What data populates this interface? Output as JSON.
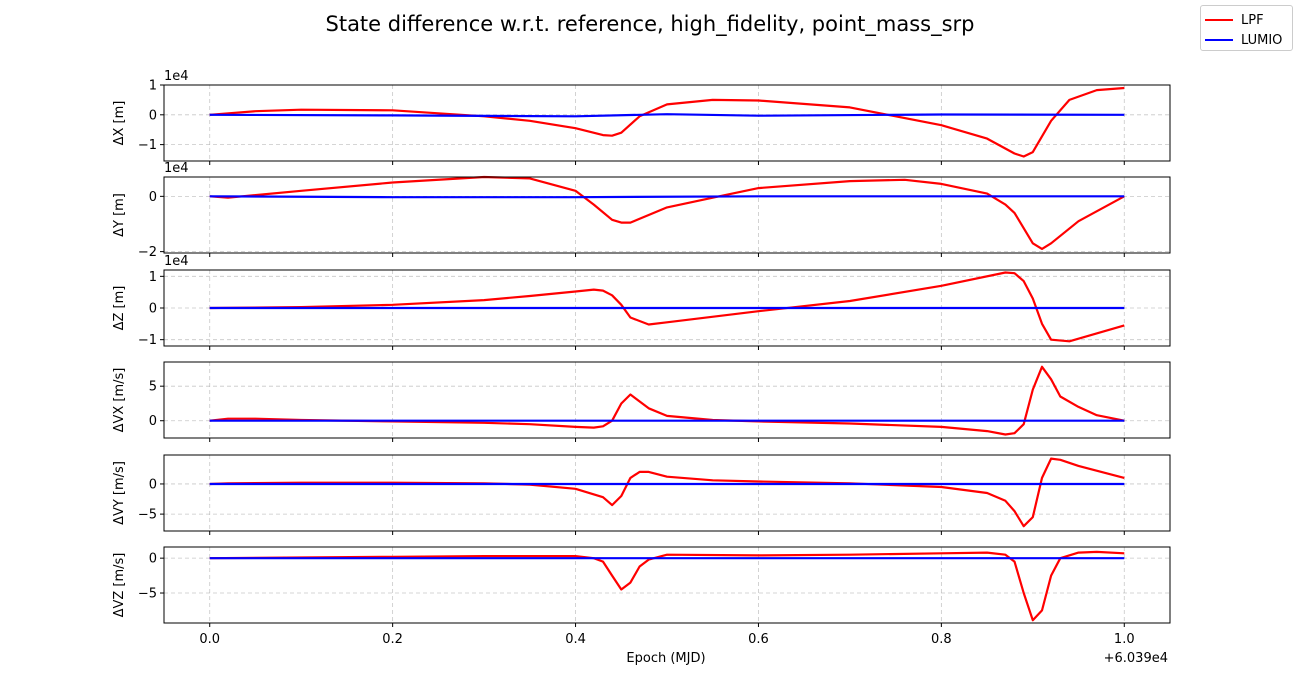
{
  "chart_data": {
    "type": "line",
    "title": "State difference w.r.t. reference, high_fidelity, point_mass_srp",
    "xlabel": "Epoch (MJD)",
    "x_offset_label": "+6.039e4",
    "xlim": [
      -0.05,
      1.05
    ],
    "x_ticks": [
      0.0,
      0.2,
      0.4,
      0.6,
      0.8,
      1.0
    ],
    "x_tick_labels": [
      "0.0",
      "0.2",
      "0.4",
      "0.6",
      "0.8",
      "1.0"
    ],
    "grid": true,
    "legend": {
      "placement": "top-right",
      "entries": [
        {
          "name": "LPF",
          "color": "#ff0000"
        },
        {
          "name": "LUMIO",
          "color": "#0000ff"
        }
      ]
    },
    "subplots": [
      {
        "ylabel": "ΔX [m]",
        "multiplier": "1e4",
        "ylim": [
          -1.55,
          1.0
        ],
        "y_ticks": [
          -1,
          0,
          1
        ],
        "y_tick_labels": [
          "−1",
          "0",
          "1"
        ],
        "series": [
          {
            "name": "LPF",
            "x": [
              0,
              0.05,
              0.1,
              0.2,
              0.3,
              0.35,
              0.4,
              0.43,
              0.44,
              0.45,
              0.47,
              0.5,
              0.55,
              0.6,
              0.7,
              0.8,
              0.85,
              0.88,
              0.89,
              0.9,
              0.92,
              0.94,
              0.97,
              1.0
            ],
            "y": [
              0.0,
              0.12,
              0.17,
              0.15,
              -0.05,
              -0.2,
              -0.45,
              -0.68,
              -0.7,
              -0.6,
              -0.05,
              0.35,
              0.5,
              0.48,
              0.25,
              -0.35,
              -0.8,
              -1.3,
              -1.4,
              -1.25,
              -0.2,
              0.5,
              0.83,
              0.9
            ]
          },
          {
            "name": "LUMIO",
            "x": [
              0,
              0.2,
              0.4,
              0.5,
              0.6,
              0.8,
              1.0
            ],
            "y": [
              0.0,
              -0.02,
              -0.05,
              0.02,
              -0.03,
              0.01,
              0.0
            ]
          }
        ]
      },
      {
        "ylabel": "ΔY [m]",
        "multiplier": "1e4",
        "ylim": [
          -2.05,
          0.7
        ],
        "y_ticks": [
          -2,
          0
        ],
        "y_tick_labels": [
          "−2",
          "0"
        ],
        "series": [
          {
            "name": "LPF",
            "x": [
              0,
              0.02,
              0.1,
              0.2,
              0.3,
              0.35,
              0.4,
              0.42,
              0.44,
              0.45,
              0.46,
              0.5,
              0.55,
              0.6,
              0.7,
              0.76,
              0.8,
              0.85,
              0.87,
              0.88,
              0.9,
              0.91,
              0.92,
              0.95,
              1.0
            ],
            "y": [
              0.0,
              -0.05,
              0.2,
              0.5,
              0.7,
              0.65,
              0.2,
              -0.3,
              -0.85,
              -0.95,
              -0.95,
              -0.4,
              -0.05,
              0.3,
              0.55,
              0.6,
              0.45,
              0.1,
              -0.3,
              -0.6,
              -1.7,
              -1.9,
              -1.7,
              -0.9,
              0.0
            ]
          },
          {
            "name": "LUMIO",
            "x": [
              0,
              0.2,
              0.4,
              0.6,
              0.8,
              1.0
            ],
            "y": [
              0.0,
              -0.03,
              -0.03,
              0.0,
              0.0,
              0.0
            ]
          }
        ]
      },
      {
        "ylabel": "ΔZ [m]",
        "multiplier": "1e4",
        "ylim": [
          -1.2,
          1.2
        ],
        "y_ticks": [
          -1,
          0,
          1
        ],
        "y_tick_labels": [
          "−1",
          "0",
          "1"
        ],
        "series": [
          {
            "name": "LPF",
            "x": [
              0,
              0.1,
              0.2,
              0.3,
              0.35,
              0.4,
              0.42,
              0.43,
              0.44,
              0.45,
              0.46,
              0.48,
              0.5,
              0.6,
              0.7,
              0.8,
              0.87,
              0.88,
              0.89,
              0.9,
              0.91,
              0.92,
              0.94,
              1.0
            ],
            "y": [
              0.0,
              0.03,
              0.1,
              0.25,
              0.38,
              0.52,
              0.58,
              0.55,
              0.4,
              0.1,
              -0.3,
              -0.52,
              -0.45,
              -0.1,
              0.22,
              0.7,
              1.12,
              1.1,
              0.85,
              0.3,
              -0.5,
              -1.0,
              -1.05,
              -0.55
            ]
          },
          {
            "name": "LUMIO",
            "x": [
              0,
              0.5,
              1.0
            ],
            "y": [
              0.0,
              0.0,
              0.0
            ]
          }
        ]
      },
      {
        "ylabel": "ΔVX [m/s]",
        "multiplier": "",
        "ylim": [
          -2.5,
          8.5
        ],
        "y_ticks": [
          0,
          5
        ],
        "y_tick_labels": [
          "0",
          "5"
        ],
        "series": [
          {
            "name": "LPF",
            "x": [
              0,
              0.02,
              0.05,
              0.1,
              0.2,
              0.3,
              0.35,
              0.4,
              0.42,
              0.43,
              0.44,
              0.45,
              0.46,
              0.48,
              0.5,
              0.55,
              0.6,
              0.7,
              0.8,
              0.85,
              0.87,
              0.88,
              0.89,
              0.9,
              0.91,
              0.92,
              0.93,
              0.95,
              0.97,
              1.0
            ],
            "y": [
              0.0,
              0.3,
              0.3,
              0.1,
              -0.1,
              -0.3,
              -0.5,
              -0.9,
              -1.0,
              -0.8,
              0.0,
              2.5,
              3.8,
              1.8,
              0.7,
              0.1,
              -0.1,
              -0.4,
              -0.9,
              -1.5,
              -2.0,
              -1.8,
              -0.5,
              4.5,
              7.8,
              6.0,
              3.5,
              2.0,
              0.8,
              0.0
            ]
          },
          {
            "name": "LUMIO",
            "x": [
              0,
              0.5,
              1.0
            ],
            "y": [
              0.0,
              0.0,
              0.0
            ]
          }
        ]
      },
      {
        "ylabel": "ΔVY [m/s]",
        "multiplier": "",
        "ylim": [
          -7.8,
          4.8
        ],
        "y_ticks": [
          -5,
          0
        ],
        "y_tick_labels": [
          "−5",
          "0"
        ],
        "series": [
          {
            "name": "LPF",
            "x": [
              0,
              0.02,
              0.1,
              0.2,
              0.3,
              0.35,
              0.4,
              0.43,
              0.44,
              0.45,
              0.46,
              0.47,
              0.48,
              0.5,
              0.55,
              0.6,
              0.7,
              0.8,
              0.85,
              0.87,
              0.88,
              0.89,
              0.9,
              0.91,
              0.92,
              0.93,
              0.95,
              1.0
            ],
            "y": [
              0.0,
              0.1,
              0.2,
              0.2,
              0.1,
              -0.1,
              -0.8,
              -2.2,
              -3.5,
              -2.0,
              1.0,
              2.0,
              2.0,
              1.2,
              0.6,
              0.4,
              0.1,
              -0.5,
              -1.5,
              -2.8,
              -4.5,
              -7.0,
              -5.5,
              1.0,
              4.2,
              4.0,
              3.0,
              1.0
            ]
          },
          {
            "name": "LUMIO",
            "x": [
              0,
              0.5,
              1.0
            ],
            "y": [
              0.0,
              0.0,
              0.0
            ]
          }
        ]
      },
      {
        "ylabel": "ΔVZ [m/s]",
        "multiplier": "",
        "ylim": [
          -9.3,
          1.6
        ],
        "y_ticks": [
          -5,
          0
        ],
        "y_tick_labels": [
          "−5",
          "0"
        ],
        "series": [
          {
            "name": "LPF",
            "x": [
              0,
              0.1,
              0.2,
              0.3,
              0.4,
              0.42,
              0.43,
              0.44,
              0.45,
              0.46,
              0.47,
              0.48,
              0.5,
              0.6,
              0.7,
              0.8,
              0.85,
              0.87,
              0.88,
              0.89,
              0.9,
              0.91,
              0.92,
              0.93,
              0.95,
              0.97,
              1.0
            ],
            "y": [
              0.0,
              0.1,
              0.2,
              0.3,
              0.3,
              0.0,
              -0.5,
              -2.5,
              -4.5,
              -3.5,
              -1.2,
              -0.2,
              0.5,
              0.4,
              0.5,
              0.7,
              0.8,
              0.5,
              -0.5,
              -5.0,
              -8.9,
              -7.5,
              -2.5,
              0.0,
              0.8,
              0.9,
              0.7
            ]
          },
          {
            "name": "LUMIO",
            "x": [
              0,
              0.5,
              1.0
            ],
            "y": [
              0.0,
              0.0,
              0.0
            ]
          }
        ]
      }
    ]
  }
}
